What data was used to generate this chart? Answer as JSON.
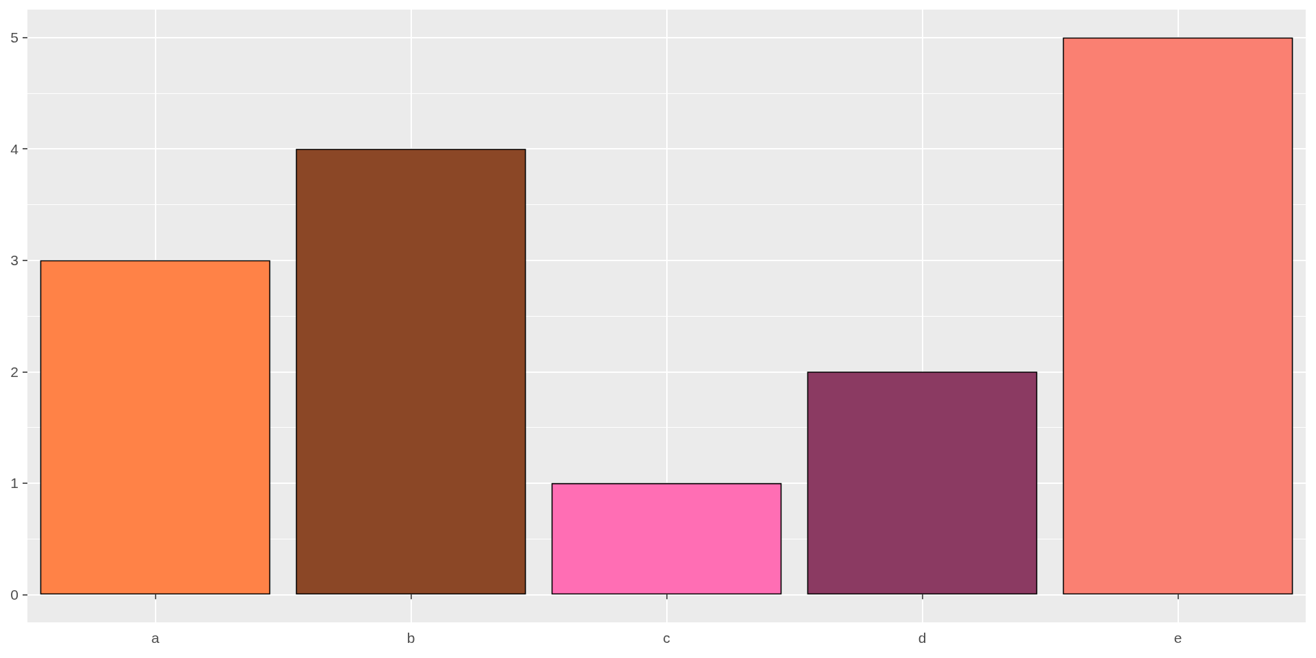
{
  "chart_data": {
    "type": "bar",
    "categories": [
      "a",
      "b",
      "c",
      "d",
      "e"
    ],
    "values": [
      3,
      4,
      1,
      2,
      5
    ],
    "colors": [
      "#ff8247",
      "#8b4726",
      "#ff6eb4",
      "#8b3a62",
      "#fa8072"
    ],
    "ylim": [
      -0.25,
      5.25
    ],
    "yticks": [
      0,
      1,
      2,
      3,
      4,
      5
    ],
    "grid": true
  }
}
